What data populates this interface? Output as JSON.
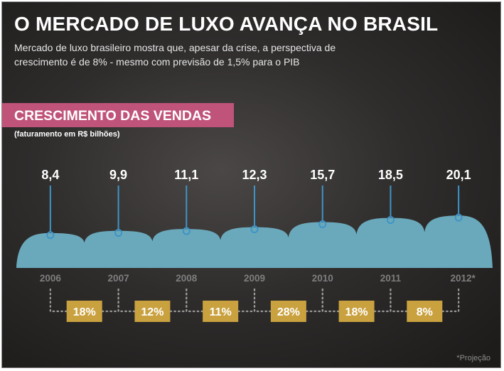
{
  "header": {
    "title": "O MERCADO DE LUXO AVANÇA NO BRASIL",
    "subtitle": "Mercado de luxo brasileiro mostra que, apesar da crise, a perspectiva de crescimento é de 8% - mesmo com previsão de 1,5% para o PIB"
  },
  "section": {
    "title": "CRESCIMENTO DAS VENDAS",
    "unit_note": "(faturamento em R$ bilhões)"
  },
  "footnote": "*Projeção",
  "colors": {
    "section_band": "#c0537a",
    "area": "#6aa9bb",
    "stem": "#3f94c6",
    "badge": "#c9a13f",
    "year_text": "#7e7e7e",
    "value_text": "#ffffff"
  },
  "chart_data": {
    "type": "area",
    "title": "CRESCIMENTO DAS VENDAS",
    "ylabel": "(faturamento em R$ bilhões)",
    "categories": [
      "2006",
      "2007",
      "2008",
      "2009",
      "2010",
      "2011",
      "2012*"
    ],
    "values": [
      8.4,
      9.9,
      11.1,
      12.3,
      15.7,
      18.5,
      20.1
    ],
    "value_labels": [
      "8,4",
      "9,9",
      "11,1",
      "12,3",
      "15,7",
      "18,5",
      "20,1"
    ],
    "growth_labels": [
      "18%",
      "12%",
      "11%",
      "28%",
      "18%",
      "8%"
    ],
    "ylim": [
      0,
      21
    ],
    "grid": false,
    "legend": "none"
  }
}
